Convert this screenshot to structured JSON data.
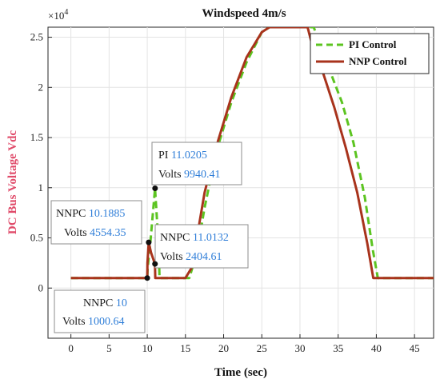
{
  "chart_data": {
    "type": "line",
    "title": "Windspeed 4m/s",
    "xlabel": "Time (sec)",
    "ylabel": "DC Bus Voltage Vdc",
    "y_exponent_label": "×10^4",
    "xlim": [
      -3,
      47.5
    ],
    "ylim": [
      -5000,
      26000
    ],
    "x_ticks": [
      0,
      5,
      10,
      15,
      20,
      25,
      30,
      35,
      40,
      45
    ],
    "y_ticks": [
      0,
      5000,
      10000,
      15000,
      20000,
      25000
    ],
    "y_tick_labels": [
      "0",
      "0.5",
      "1",
      "1.5",
      "2",
      "2.5"
    ],
    "grid": true,
    "legend_position": "top-right",
    "series": [
      {
        "name": "PI Control",
        "color": "#5cc421",
        "style": "dashed",
        "x": [
          0,
          0,
          10,
          10.05,
          10.4,
          11.0205,
          11.5,
          11.6,
          15.5,
          16.5,
          17.5,
          19,
          21,
          23,
          25,
          26,
          31.8,
          32.5,
          34,
          35.5,
          37,
          38.5,
          39.5,
          40.2,
          40.4,
          47.5
        ],
        "y": [
          1000,
          1000,
          1000,
          2000,
          4500,
          9940.41,
          4000,
          1000,
          1000,
          3500,
          8000,
          13500,
          18500,
          22500,
          25500,
          26000,
          26000,
          24500,
          21500,
          18500,
          14500,
          9000,
          4000,
          1000,
          1000,
          1000
        ]
      },
      {
        "name": "NNP Control",
        "color": "#a8331c",
        "style": "solid",
        "x": [
          0,
          0,
          10,
          10.02,
          10.1885,
          10.5,
          11.0132,
          11.05,
          15,
          15.8,
          16.5,
          17.5,
          19,
          21,
          23,
          25,
          26,
          31,
          31.5,
          33,
          34.5,
          36,
          37.5,
          38.8,
          39.6,
          39.6,
          47.5
        ],
        "y": [
          1000,
          1000,
          1000.64,
          2500,
          4554.35,
          3500,
          2404.61,
          1000,
          1000,
          2000,
          5000,
          9500,
          14000,
          19000,
          23000,
          25500,
          26000,
          26000,
          24500,
          21500,
          18000,
          14000,
          9500,
          4500,
          1000,
          1000,
          1000
        ]
      }
    ],
    "datatips": [
      {
        "label": "PI",
        "x": "11.0205",
        "y_label": "Volts",
        "y": "9940.41"
      },
      {
        "label": "NNPC",
        "x": "10.1885",
        "y_label": "Volts",
        "y": "4554.35"
      },
      {
        "label": "NNPC",
        "x": "11.0132",
        "y_label": "Volts",
        "y": "2404.61"
      },
      {
        "label": "NNPC",
        "x": "10",
        "y_label": "Volts",
        "y": "1000.64"
      }
    ]
  }
}
